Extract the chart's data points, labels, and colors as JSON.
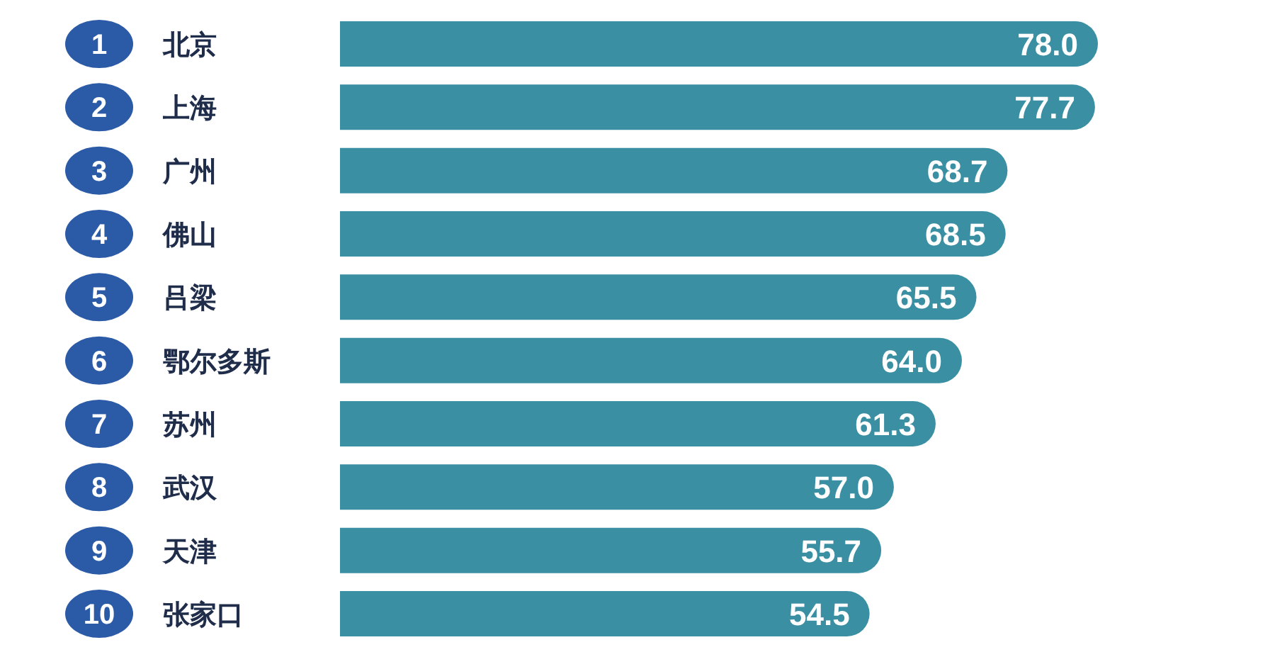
{
  "chart_data": {
    "type": "bar",
    "orientation": "horizontal",
    "categories": [
      "北京",
      "上海",
      "广州",
      "佛山",
      "吕梁",
      "鄂尔多斯",
      "苏州",
      "武汉",
      "天津",
      "张家口"
    ],
    "values": [
      78.0,
      77.7,
      68.7,
      68.5,
      65.5,
      64.0,
      61.3,
      57.0,
      55.7,
      54.5
    ],
    "value_labels": [
      "78.0",
      "77.7",
      "68.7",
      "68.5",
      "65.5",
      "64.0",
      "61.3",
      "57.0",
      "55.7",
      "54.5"
    ],
    "color": "#3b8fa3",
    "annotations": [
      "1",
      "2",
      "3",
      "4",
      "5",
      "6",
      "7",
      "8",
      "9",
      "10"
    ]
  }
}
